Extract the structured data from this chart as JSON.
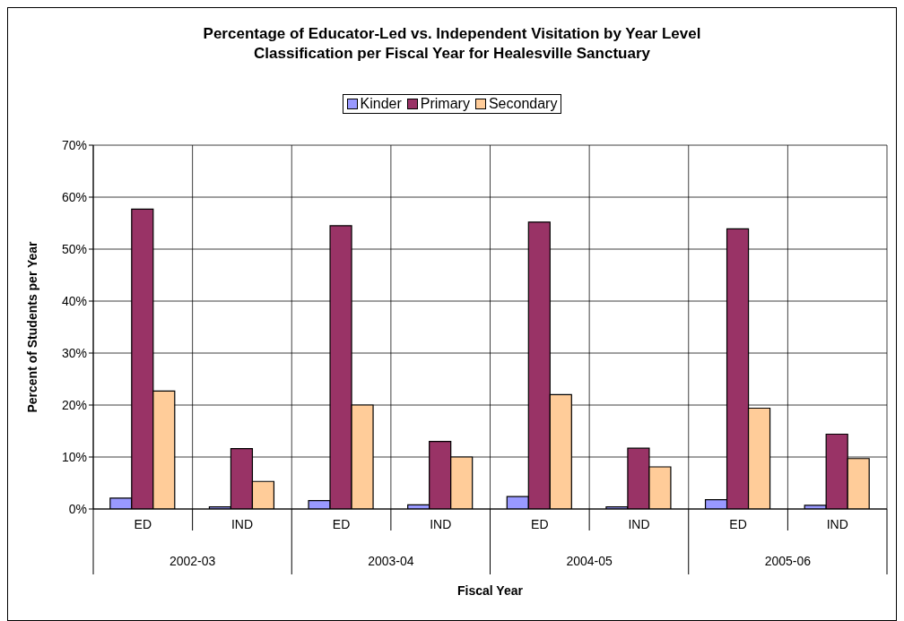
{
  "chart_data": {
    "type": "bar",
    "title": "Percentage of Educator-Led vs. Independent Visitation by Year Level Classification per Fiscal Year for Healesville Sanctuary",
    "xlabel": "Fiscal Year",
    "ylabel": "Percent of Students per Year",
    "categories": [
      "ED",
      "IND",
      "ED",
      "IND",
      "ED",
      "IND",
      "ED",
      "IND"
    ],
    "annotations": [
      "2002-03",
      "2003-04",
      "2004-05",
      "2005-06"
    ],
    "series": [
      {
        "name": "Kinder",
        "color": "#9999ff",
        "values": [
          2.1,
          0.4,
          1.6,
          0.8,
          2.4,
          0.4,
          1.8,
          0.7
        ]
      },
      {
        "name": "Primary",
        "color": "#993366",
        "values": [
          57.7,
          11.6,
          54.5,
          13.0,
          55.2,
          11.7,
          53.9,
          14.4
        ]
      },
      {
        "name": "Secondary",
        "color": "#ffcc99",
        "values": [
          22.7,
          5.3,
          20.0,
          10.0,
          22.0,
          8.1,
          19.4,
          9.7
        ]
      }
    ],
    "ylim": [
      0,
      70
    ],
    "yticks": [
      {
        "value": 0,
        "label": "0%"
      },
      {
        "value": 10,
        "label": "10%"
      },
      {
        "value": 20,
        "label": "20%"
      },
      {
        "value": 30,
        "label": "30%"
      },
      {
        "value": 40,
        "label": "40%"
      },
      {
        "value": 50,
        "label": "50%"
      },
      {
        "value": 60,
        "label": "60%"
      },
      {
        "value": 70,
        "label": "70%"
      }
    ],
    "grid": true,
    "legend": "top"
  }
}
